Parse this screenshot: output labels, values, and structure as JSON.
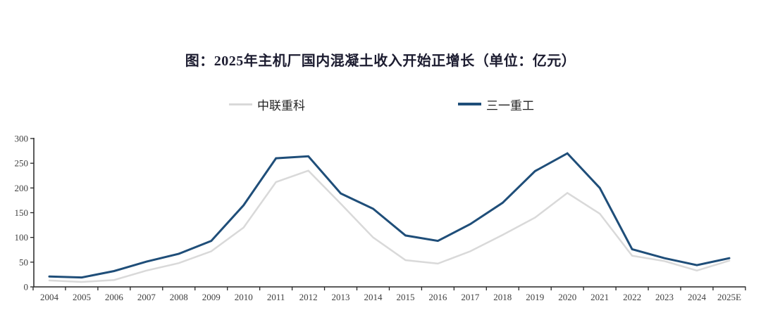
{
  "title": "图：2025年主机厂国内混凝土收入开始正增长（单位：亿元）",
  "legend": {
    "items": [
      {
        "label": "中联重科",
        "color": "#d9d9d9"
      },
      {
        "label": "三一重工",
        "color": "#1f4e79"
      }
    ]
  },
  "colors": {
    "zoomlion_line": "#d9d9d9",
    "sany_line": "#1f4e79",
    "axis": "#262626",
    "tick_label": "#404040",
    "title_text": "#1c1c30",
    "background": "#ffffff"
  },
  "chart_data": {
    "type": "line",
    "title": "图：2025年主机厂国内混凝土收入开始正增长（单位：亿元）",
    "unit": "亿元",
    "categories": [
      "2004",
      "2005",
      "2006",
      "2007",
      "2008",
      "2009",
      "2010",
      "2011",
      "2012",
      "2013",
      "2014",
      "2015",
      "2016",
      "2017",
      "2018",
      "2019",
      "2020",
      "2021",
      "2022",
      "2023",
      "2024",
      "2025E"
    ],
    "series": [
      {
        "name": "中联重科",
        "color": "#d9d9d9",
        "stroke_width": 2.5,
        "values": [
          13,
          10,
          14,
          33,
          48,
          72,
          120,
          212,
          235,
          168,
          100,
          54,
          47,
          72,
          105,
          140,
          190,
          148,
          63,
          52,
          33,
          53
        ]
      },
      {
        "name": "三一重工",
        "color": "#1f4e79",
        "stroke_width": 3,
        "values": [
          21,
          19,
          32,
          51,
          67,
          93,
          165,
          260,
          264,
          189,
          158,
          104,
          93,
          127,
          170,
          234,
          270,
          200,
          76,
          58,
          44,
          58
        ]
      }
    ],
    "xlabel": "",
    "ylabel": "",
    "ylim": [
      0,
      300
    ],
    "yticks": [
      0,
      50,
      100,
      150,
      200,
      250,
      300
    ],
    "grid": false,
    "legend_position": "top"
  }
}
